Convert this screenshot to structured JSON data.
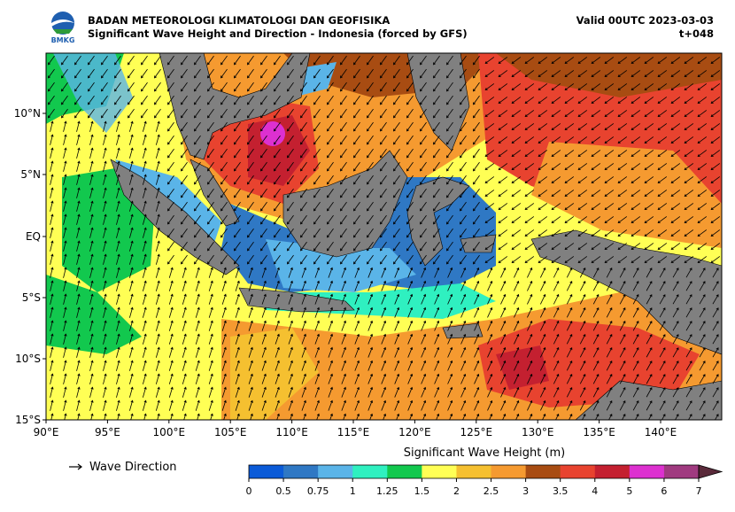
{
  "header": {
    "agency": "BADAN METEOROLOGI KLIMATOLOGI DAN GEOFISIKA",
    "product": "Significant Wave Height and Direction - Indonesia (forced by GFS)",
    "valid": "Valid 00UTC 2023-03-03",
    "step": "t+048"
  },
  "logo": {
    "label": "BMKG"
  },
  "axes": {
    "lat_labels": [
      "10°N",
      "5°N",
      "EQ",
      "5°S",
      "10°S",
      "15°S"
    ],
    "lon_labels": [
      "90°E",
      "95°E",
      "100°E",
      "105°E",
      "110°E",
      "115°E",
      "120°E",
      "125°E",
      "130°E",
      "135°E",
      "140°E"
    ]
  },
  "legend": {
    "wave_direction": "Wave Direction"
  },
  "colorbar": {
    "title": "Significant Wave Height (m)",
    "ticks": [
      0,
      0.5,
      0.75,
      1,
      1.25,
      1.5,
      2,
      2.5,
      3,
      3.5,
      4,
      5,
      6,
      7
    ],
    "colors": [
      "#0b5bd8",
      "#2f78c4",
      "#5ab4e8",
      "#2ff0c0",
      "#12c84e",
      "#ffff55",
      "#f5c030",
      "#f59a30",
      "#a84c12",
      "#e8432f",
      "#c42030",
      "#dd30d0",
      "#a03a80",
      "#5a2a3a"
    ]
  }
}
